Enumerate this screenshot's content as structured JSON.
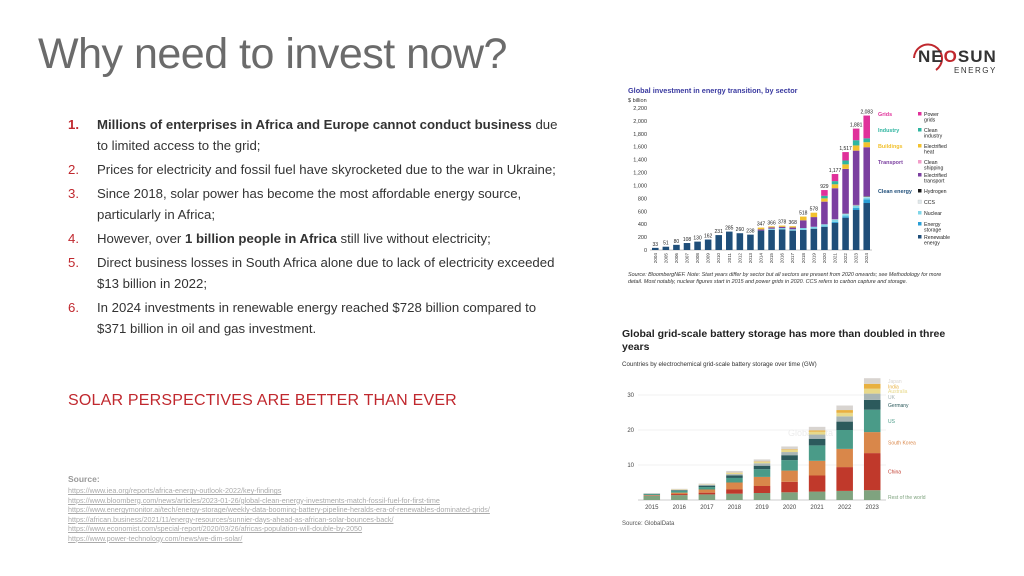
{
  "slide": {
    "title": "Why need to invest now?",
    "logo": {
      "brand_a": "NE",
      "brand_o": "O",
      "brand_b": "SUN",
      "sub": "ENERGY"
    },
    "points": [
      {
        "num": "1.",
        "bold": "Millions of enterprises in Africa and Europe cannot conduct business",
        "pre": "",
        "post": " due to limited access to the grid;"
      },
      {
        "num": "2.",
        "bold": "",
        "pre": "Prices for electricity and fossil fuel have skyrocketed due to the war in Ukraine;",
        "post": ""
      },
      {
        "num": "3.",
        "bold": "",
        "pre": "Since 2018, solar power has become the most affordable energy source, particularly in Africa;",
        "post": ""
      },
      {
        "num": "4.",
        "bold": "1 billion people in Africa",
        "pre": "However, over ",
        "post": " still live without electricity;"
      },
      {
        "num": "5.",
        "bold": "",
        "pre": "Direct business losses in South Africa alone due to lack of electricity exceeded $13 billion in 2022;",
        "post": ""
      },
      {
        "num": "6.",
        "bold": "",
        "pre": "In 2024 investments in renewable energy reached $728 billion compared to $371 billion in oil and gas investment.",
        "post": ""
      }
    ],
    "tagline": "SOLAR PERSPECTIVES ARE BETTER THAN EVER",
    "source_label": "Source:",
    "sources": [
      "https://www.iea.org/reports/africa-energy-outlook-2022/key-findings",
      "https://www.bloomberg.com/news/articles/2023-01-26/global-clean-energy-investments-match-fossil-fuel-for-first-time",
      "https://www.energymonitor.ai/tech/energy-storage/weekly-data-booming-battery-pipeline-heralds-era-of-renewables-dominated-grids/",
      "https://african.business/2021/11/energy-resources/sunnier-days-ahead-as-african-solar-bounces-back/",
      "https://www.economist.com/special-report/2020/03/26/africas-population-will-double-by-2050",
      "https://www.power-technology.com/news/we-dim-solar/"
    ],
    "colors": {
      "accent": "#c0282e",
      "title": "#6b6b6b",
      "navy": "#1f4e79"
    }
  },
  "chart_data": [
    {
      "type": "bar",
      "title": "Global investment in energy transition, by sector",
      "ylabel": "$ billion",
      "ylim": [
        0,
        2200
      ],
      "yticks": [
        "0",
        "200",
        "400",
        "600",
        "800",
        "1,000",
        "1,200",
        "1,400",
        "1,600",
        "1,800",
        "2,000",
        "2,200"
      ],
      "categories": [
        "2004",
        "2005",
        "2006",
        "2007",
        "2008",
        "2009",
        "2010",
        "2011",
        "2012",
        "2013",
        "2014",
        "2015",
        "2016",
        "2017",
        "2018",
        "2019",
        "2020",
        "2021",
        "2022",
        "2023",
        "2024"
      ],
      "totals": [
        33,
        51,
        80,
        108,
        130,
        162,
        231,
        285,
        260,
        238,
        347,
        366,
        378,
        368,
        518,
        578,
        929,
        1177,
        1517,
        1881,
        2083
      ],
      "total_labels": [
        "33",
        "51",
        "80",
        "108",
        "130",
        "162",
        "231",
        "285",
        "260",
        "238",
        "347",
        "366",
        "378",
        "368",
        "518",
        "578",
        "929",
        "1,177",
        "1,517",
        "1,881",
        "2,083"
      ],
      "series": [
        {
          "name": "Renewable energy",
          "color": "#1f4e79",
          "values": [
            33,
            51,
            80,
            108,
            130,
            162,
            231,
            285,
            260,
            238,
            300,
            310,
            320,
            300,
            310,
            330,
            360,
            420,
            500,
            620,
            728
          ]
        },
        {
          "name": "Energy storage",
          "color": "#2a9fd6",
          "values": [
            0,
            0,
            0,
            0,
            0,
            0,
            0,
            0,
            0,
            0,
            0,
            0,
            0,
            0,
            0,
            0,
            5,
            15,
            20,
            30,
            54
          ]
        },
        {
          "name": "Nuclear",
          "color": "#7fd6e8",
          "values": [
            0,
            0,
            0,
            0,
            0,
            0,
            0,
            0,
            0,
            0,
            0,
            20,
            20,
            22,
            30,
            30,
            30,
            35,
            35,
            33,
            34
          ]
        },
        {
          "name": "CCS",
          "color": "#dfe8ec",
          "values": [
            0,
            0,
            0,
            0,
            0,
            0,
            0,
            0,
            0,
            0,
            0,
            0,
            0,
            0,
            0,
            0,
            3,
            5,
            8,
            10,
            11
          ]
        },
        {
          "name": "Hydrogen",
          "color": "#1a1a1a",
          "values": [
            0,
            0,
            0,
            0,
            0,
            0,
            0,
            0,
            0,
            0,
            0,
            0,
            0,
            0,
            0,
            0,
            1,
            2,
            3,
            6,
            8
          ]
        },
        {
          "name": "Electrified transport",
          "color": "#7b3fa0",
          "values": [
            0,
            0,
            0,
            0,
            0,
            0,
            0,
            0,
            0,
            0,
            20,
            20,
            20,
            26,
            120,
            150,
            350,
            480,
            690,
            840,
            757
          ]
        },
        {
          "name": "Clean shipping",
          "color": "#f29ec9",
          "values": [
            0,
            0,
            0,
            0,
            0,
            0,
            0,
            0,
            0,
            0,
            0,
            0,
            0,
            0,
            0,
            0,
            1,
            1,
            1,
            1,
            1
          ]
        },
        {
          "name": "Electrified heat",
          "color": "#f2c12e",
          "values": [
            0,
            0,
            0,
            0,
            0,
            0,
            0,
            0,
            0,
            0,
            27,
            16,
            18,
            20,
            58,
            68,
            50,
            60,
            70,
            80,
            77
          ]
        },
        {
          "name": "Clean industry",
          "color": "#2fb5a0",
          "values": [
            0,
            0,
            0,
            0,
            0,
            0,
            0,
            0,
            0,
            0,
            0,
            0,
            0,
            0,
            0,
            0,
            40,
            49,
            60,
            81,
            60
          ]
        },
        {
          "name": "Power grids",
          "color": "#e0309a",
          "values": [
            0,
            0,
            0,
            0,
            0,
            0,
            0,
            0,
            0,
            0,
            0,
            0,
            0,
            0,
            0,
            0,
            89,
            110,
            130,
            180,
            353
          ]
        }
      ],
      "legend_groups": [
        {
          "label": "Grids",
          "color": "#e0309a",
          "items": [
            "Power grids"
          ]
        },
        {
          "label": "Industry",
          "color": "#2fb5a0",
          "items": [
            "Clean industry"
          ]
        },
        {
          "label": "Buildings",
          "color": "#f2c12e",
          "items": [
            "Electrified heat"
          ]
        },
        {
          "label": "Transport",
          "color": "#7b3fa0",
          "items": [
            "Clean shipping",
            "Electrified transport"
          ]
        },
        {
          "label": "Clean energy",
          "color": "#1f4e79",
          "items": [
            "Hydrogen",
            "CCS",
            "Nuclear",
            "Energy storage",
            "Renewable energy"
          ]
        }
      ],
      "legend_labels": {
        "Power grids": "Power grids",
        "Clean industry": "Clean industry",
        "Electrified heat": "Electrified heat",
        "Clean shipping": "Clean shipping",
        "Electrified transport": "Electrified transport",
        "Hydrogen": "Hydrogen",
        "CCS": "CCS",
        "Nuclear": "Nuclear",
        "Energy storage": "Energy storage",
        "Renewable energy": "Renewable energy"
      },
      "note": "Source: BloombergNEF. Note: Start years differ by sector but all sectors are present from 2020 onwards; see Methodology for more detail. Most notably, nuclear figures start in 2015 and power grids in 2020. CCS refers to carbon capture and storage."
    },
    {
      "type": "bar",
      "title": "Global grid-scale battery storage has more than doubled in three years",
      "subtitle": "Countries by electrochemical grid-scale battery storage over time (GW)",
      "ylim": [
        0,
        36
      ],
      "yticks": [
        "10",
        "20",
        "30"
      ],
      "categories": [
        "2015",
        "2016",
        "2017",
        "2018",
        "2019",
        "2020",
        "2021",
        "2022",
        "2023"
      ],
      "series": [
        {
          "name": "Rest of the world",
          "color": "#7fa37f",
          "values": [
            1.2,
            1.4,
            1.6,
            1.8,
            2.0,
            2.2,
            2.4,
            2.6,
            2.8
          ]
        },
        {
          "name": "China",
          "color": "#c0392b",
          "values": [
            0.1,
            0.3,
            0.5,
            1.2,
            2.0,
            3.0,
            4.6,
            6.8,
            10.6
          ]
        },
        {
          "name": "South Korea",
          "color": "#d9874a",
          "values": [
            0.1,
            0.4,
            0.9,
            2.0,
            2.6,
            3.2,
            4.2,
            5.2,
            6.0
          ]
        },
        {
          "name": "US",
          "color": "#4a9b88",
          "values": [
            0.3,
            0.5,
            0.7,
            1.3,
            2.2,
            3.0,
            4.4,
            5.4,
            6.4
          ]
        },
        {
          "name": "Germany",
          "color": "#2c5a5c",
          "values": [
            0.1,
            0.2,
            0.4,
            0.7,
            1.0,
            1.4,
            1.9,
            2.4,
            2.8
          ]
        },
        {
          "name": "UK",
          "color": "#a8b5b5",
          "values": [
            0.0,
            0.1,
            0.2,
            0.4,
            0.7,
            0.9,
            1.2,
            1.5,
            1.8
          ]
        },
        {
          "name": "Australia",
          "color": "#e8d98a",
          "values": [
            0.0,
            0.1,
            0.1,
            0.3,
            0.4,
            0.6,
            0.8,
            1.0,
            1.4
          ]
        },
        {
          "name": "India",
          "color": "#e8b040",
          "values": [
            0.0,
            0.0,
            0.0,
            0.1,
            0.1,
            0.2,
            0.4,
            0.8,
            1.4
          ]
        },
        {
          "name": "Japan",
          "color": "#d8d4d0",
          "values": [
            0.1,
            0.2,
            0.3,
            0.5,
            0.6,
            0.8,
            1.0,
            1.3,
            1.6
          ]
        }
      ],
      "watermark": "GlobalData",
      "source": "Source: GlobalData"
    }
  ]
}
